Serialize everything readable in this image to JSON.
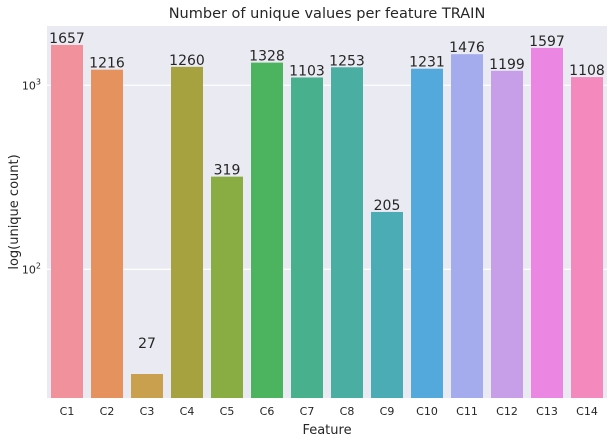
{
  "chart_data": {
    "type": "bar",
    "title": "Number of unique values per feature TRAIN",
    "xlabel": "Feature",
    "ylabel": "log(unique count)",
    "yscale": "log",
    "ylim": [
      20,
      2100
    ],
    "grid": true,
    "background": "#eaeaf2",
    "categories": [
      "C1",
      "C2",
      "C3",
      "C4",
      "C5",
      "C6",
      "C7",
      "C8",
      "C9",
      "C10",
      "C11",
      "C12",
      "C13",
      "C14"
    ],
    "values": [
      1657,
      1216,
      27,
      1260,
      319,
      1328,
      1103,
      1253,
      205,
      1231,
      1476,
      1199,
      1597,
      1108
    ],
    "value_labels": [
      "1657",
      "1216",
      "27",
      "1260",
      "319",
      "1328",
      "1103",
      "1253",
      "205",
      "1231",
      "1476",
      "1199",
      "1597",
      "1108"
    ],
    "colors": [
      "#f0919b",
      "#e5925e",
      "#c9a04e",
      "#a6a23f",
      "#89ad43",
      "#4cb35f",
      "#49b08d",
      "#4aaea2",
      "#4bacb5",
      "#53a9db",
      "#a4acee",
      "#c79fe8",
      "#ec86e3",
      "#f389bd"
    ],
    "yticks": [
      {
        "value": 100,
        "base": "10",
        "exp": "2"
      },
      {
        "value": 1000,
        "base": "10",
        "exp": "3"
      }
    ]
  }
}
